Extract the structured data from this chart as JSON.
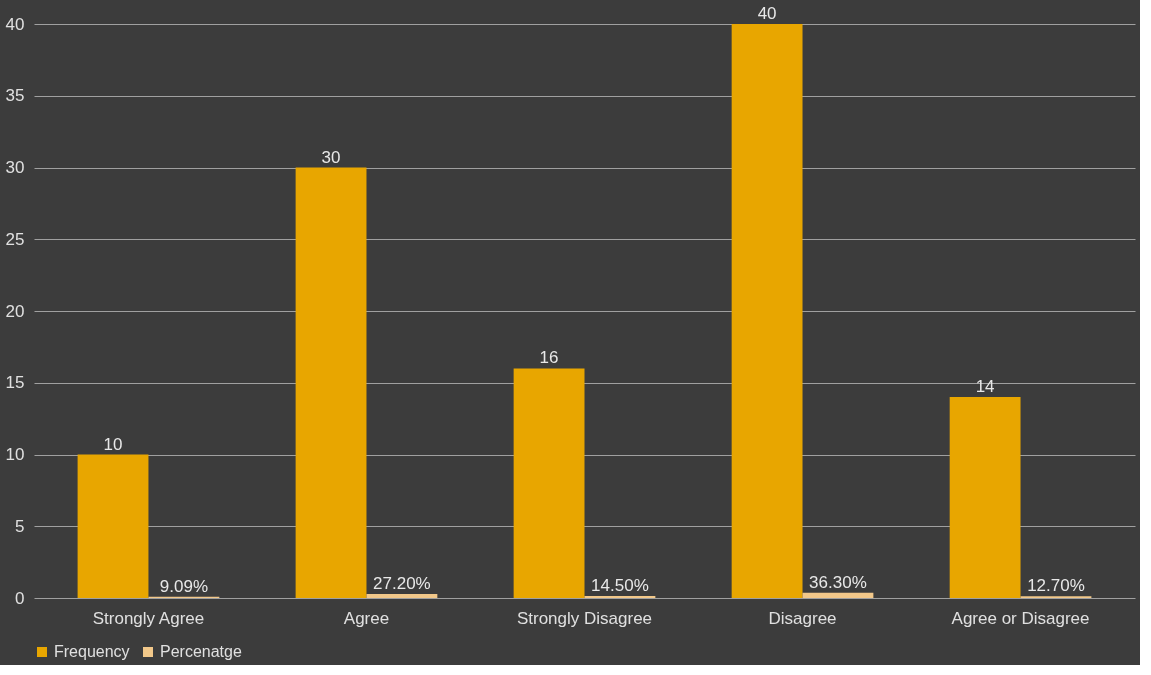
{
  "chart_data": {
    "type": "bar",
    "categories": [
      "Strongly Agree",
      "Agree",
      "Strongly Disagree",
      "Disagree",
      "Agree or Disagree"
    ],
    "series": [
      {
        "name": "Frequency",
        "color": "#e8a600",
        "values": [
          10,
          30,
          16,
          40,
          14
        ],
        "value_labels": [
          "10",
          "30",
          "16",
          "40",
          "14"
        ]
      },
      {
        "name": "Percenatge",
        "color": "#f2c88a",
        "values": [
          0.0909,
          0.272,
          0.145,
          0.363,
          0.127
        ],
        "value_labels": [
          "9.09%",
          "27.20%",
          "14.50%",
          "36.30%",
          "12.70%"
        ]
      }
    ],
    "ylim": [
      0,
      40
    ],
    "yticks": [
      0,
      5,
      10,
      15,
      20,
      25,
      30,
      35,
      40
    ],
    "grid": true,
    "legend": "bottom"
  }
}
